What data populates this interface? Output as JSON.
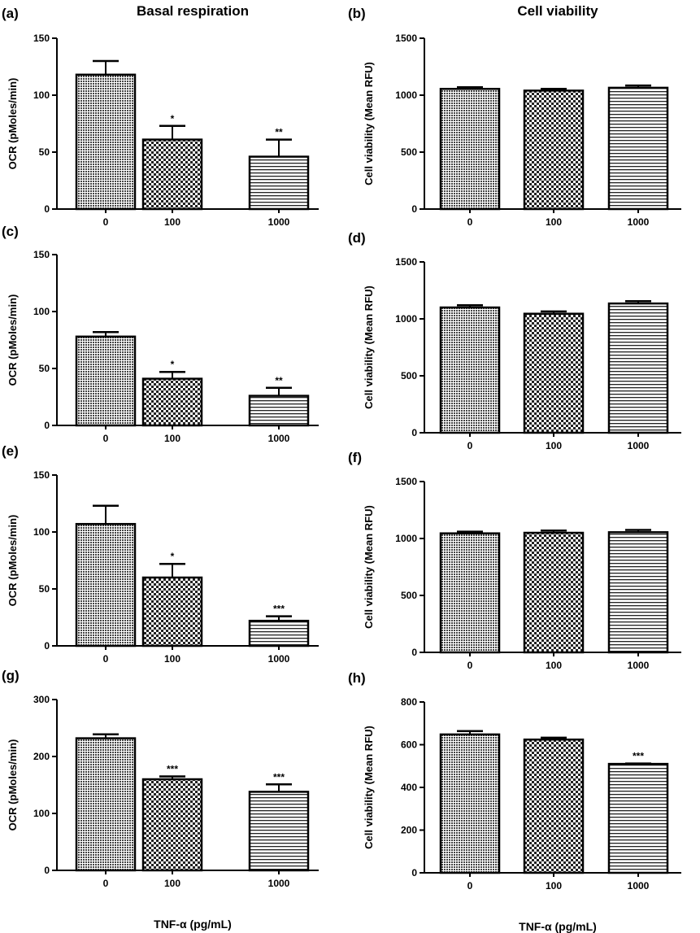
{
  "columns": [
    "Basal  respiration",
    "Cell viability"
  ],
  "x_axis_label": "TNF-α (pg/mL)",
  "chart_data": [
    {
      "panel": "(a)",
      "type": "bar",
      "categories": [
        "0",
        "100",
        "1000"
      ],
      "values": [
        118,
        61,
        46
      ],
      "errors": [
        12,
        12,
        15
      ],
      "significance": [
        "",
        "*",
        "**"
      ],
      "ylabel": "OCR (pMoles/min)",
      "ylim": [
        0,
        150
      ],
      "yticks": [
        0,
        50,
        100,
        150
      ],
      "xlabel": "",
      "patterns": [
        "dots",
        "checker",
        "hlines"
      ]
    },
    {
      "panel": "(b)",
      "type": "bar",
      "categories": [
        "0",
        "100",
        "1000"
      ],
      "values": [
        1055,
        1040,
        1065
      ],
      "errors": [
        15,
        15,
        20
      ],
      "significance": [
        "",
        "",
        ""
      ],
      "ylabel": "Cell viability (Mean RFU)",
      "ylim": [
        0,
        1500
      ],
      "yticks": [
        0,
        500,
        1000,
        1500
      ],
      "xlabel": "",
      "patterns": [
        "dots",
        "checker",
        "hlines"
      ]
    },
    {
      "panel": "(c)",
      "type": "bar",
      "categories": [
        "0",
        "100",
        "1000"
      ],
      "values": [
        78,
        41,
        26
      ],
      "errors": [
        4,
        6,
        7
      ],
      "significance": [
        "",
        "*",
        "**"
      ],
      "ylabel": "OCR (pMoles/min)",
      "ylim": [
        0,
        150
      ],
      "yticks": [
        0,
        50,
        100,
        150
      ],
      "xlabel": "",
      "patterns": [
        "dots",
        "checker",
        "hlines"
      ]
    },
    {
      "panel": "(d)",
      "type": "bar",
      "categories": [
        "0",
        "100",
        "1000"
      ],
      "values": [
        1100,
        1045,
        1135
      ],
      "errors": [
        20,
        20,
        20
      ],
      "significance": [
        "",
        "",
        ""
      ],
      "ylabel": "Cell viability (Mean RFU)",
      "ylim": [
        0,
        1500
      ],
      "yticks": [
        0,
        500,
        1000,
        1500
      ],
      "xlabel": "",
      "patterns": [
        "dots",
        "checker",
        "hlines"
      ]
    },
    {
      "panel": "(e)",
      "type": "bar",
      "categories": [
        "0",
        "100",
        "1000"
      ],
      "values": [
        107,
        60,
        22
      ],
      "errors": [
        16,
        12,
        4
      ],
      "significance": [
        "",
        "*",
        "***"
      ],
      "ylabel": "OCR (pMoles/min)",
      "ylim": [
        0,
        150
      ],
      "yticks": [
        0,
        50,
        100,
        150
      ],
      "xlabel": "",
      "patterns": [
        "dots",
        "checker",
        "hlines"
      ]
    },
    {
      "panel": "(f)",
      "type": "bar",
      "categories": [
        "0",
        "100",
        "1000"
      ],
      "values": [
        1045,
        1050,
        1055
      ],
      "errors": [
        15,
        20,
        20
      ],
      "significance": [
        "",
        "",
        ""
      ],
      "ylabel": "Cell viability (Mean RFU)",
      "ylim": [
        0,
        1500
      ],
      "yticks": [
        0,
        500,
        1000,
        1500
      ],
      "xlabel": "",
      "patterns": [
        "dots",
        "checker",
        "hlines"
      ]
    },
    {
      "panel": "(g)",
      "type": "bar",
      "categories": [
        "0",
        "100",
        "1000"
      ],
      "values": [
        232,
        160,
        138
      ],
      "errors": [
        7,
        5,
        13
      ],
      "significance": [
        "",
        "***",
        "***"
      ],
      "ylabel": "OCR (pMoles/min)",
      "ylim": [
        0,
        300
      ],
      "yticks": [
        0,
        100,
        200,
        300
      ],
      "xlabel": "TNF-α (pg/mL)",
      "patterns": [
        "dots",
        "checker",
        "hlines"
      ]
    },
    {
      "panel": "(h)",
      "type": "bar",
      "categories": [
        "0",
        "100",
        "1000"
      ],
      "values": [
        648,
        624,
        510
      ],
      "errors": [
        16,
        9,
        2
      ],
      "significance": [
        "",
        "",
        "***"
      ],
      "ylabel": "Cell viability (Mean RFU)",
      "ylim": [
        0,
        800
      ],
      "yticks": [
        0,
        200,
        400,
        600,
        800
      ],
      "xlabel": "TNF-α (pg/mL)",
      "patterns": [
        "dots",
        "checker",
        "hlines"
      ]
    }
  ]
}
